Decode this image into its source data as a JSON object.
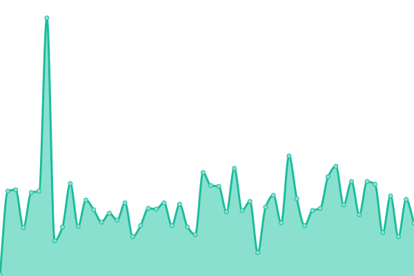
{
  "chart_data": {
    "type": "area",
    "smooth": true,
    "grid": false,
    "axes_visible": false,
    "ylim": [
      0,
      400
    ],
    "colors": {
      "line": "#1abc9c",
      "fill": "#8ae0cf",
      "point_fill": "#8ae0cf",
      "point_stroke": "#1abc9c"
    },
    "series": [
      {
        "values": [
          2,
          123,
          125,
          70,
          121,
          123,
          374,
          51,
          71,
          134,
          72,
          110,
          96,
          78,
          91,
          81,
          106,
          57,
          73,
          98,
          97,
          106,
          73,
          104,
          71,
          60,
          150,
          131,
          130,
          93,
          156,
          95,
          108,
          34,
          100,
          117,
          77,
          174,
          112,
          73,
          95,
          98,
          144,
          159,
          103,
          137,
          89,
          137,
          133,
          63,
          116,
          57,
          111,
          77
        ]
      }
    ]
  }
}
